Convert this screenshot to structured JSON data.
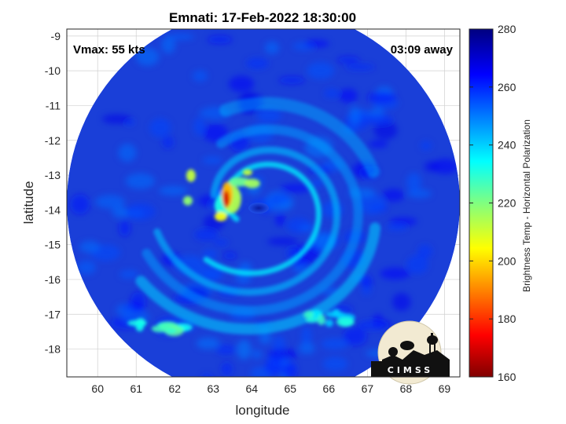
{
  "chart_data": {
    "type": "heatmap",
    "title": "Emnati: 17-Feb-2022 18:30:00",
    "xlabel": "longitude",
    "ylabel": "latitude",
    "xlim": [
      59.2,
      69.4
    ],
    "ylim": [
      -18.8,
      -8.8
    ],
    "x_ticks": [
      "60",
      "61",
      "62",
      "63",
      "64",
      "65",
      "66",
      "67",
      "68",
      "69"
    ],
    "y_ticks": [
      "-9",
      "-10",
      "-11",
      "-12",
      "-13",
      "-14",
      "-15",
      "-16",
      "-17",
      "-18"
    ],
    "grid": true,
    "colormap": "jet",
    "colorbar": {
      "label": "Brightness Temp - Horizontal Polarization",
      "range": [
        160,
        280
      ],
      "ticks": [
        "280",
        "260",
        "240",
        "220",
        "200",
        "180",
        "160"
      ]
    },
    "storm_center": {
      "lon": 64.2,
      "lat": -13.9
    },
    "swath_center": {
      "lon": 64.3,
      "lat": -13.8
    },
    "annotations": {
      "vmax": "Vmax: 55 kts",
      "time_away": "03:09 away"
    },
    "features": [
      {
        "name": "eyewall",
        "lon": 63.4,
        "lat": -13.6,
        "temp_min": 170
      },
      {
        "name": "outer band south",
        "lon": 66.0,
        "lat": -17.1,
        "temp_min": 228
      },
      {
        "name": "band southwest",
        "lon": 61.6,
        "lat": -17.4,
        "temp_min": 222
      }
    ]
  },
  "logo": {
    "text": "CIMSS"
  },
  "colors": {
    "background": "#1a3fd8",
    "frame": "#262626",
    "grid": "#d0d0d0"
  }
}
